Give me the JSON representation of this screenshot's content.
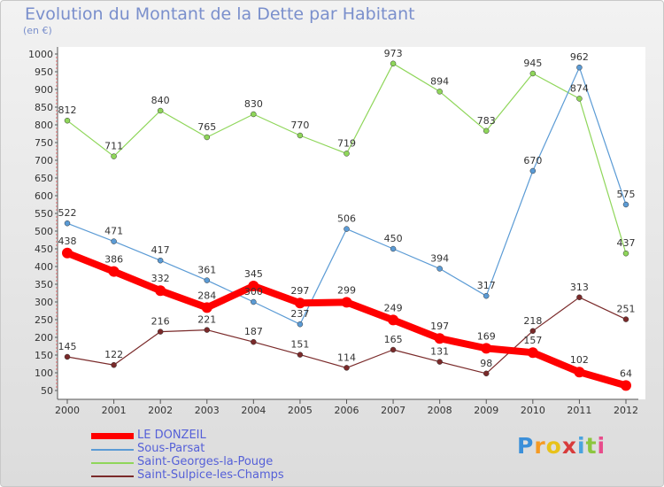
{
  "header": {
    "title": "Evolution du Montant de la Dette par Habitant",
    "subtitle": "(en €)"
  },
  "chart_data": {
    "type": "line",
    "title": "Evolution du Montant de la Dette par Habitant",
    "subtitle": "(en €)",
    "xlabel": "",
    "ylabel": "",
    "x": [
      "2000",
      "2001",
      "2002",
      "2003",
      "2004",
      "2005",
      "2006",
      "2007",
      "2008",
      "2009",
      "2010",
      "2011",
      "2012"
    ],
    "ylim": [
      50,
      1000
    ],
    "yticks": [
      50,
      100,
      150,
      200,
      250,
      300,
      350,
      400,
      450,
      500,
      550,
      600,
      650,
      700,
      750,
      800,
      850,
      900,
      950,
      1000
    ],
    "grid": false,
    "legend": "bottom-left",
    "series": [
      {
        "name": "LE DONZEIL",
        "color": "#ff0000",
        "values": [
          438,
          386,
          332,
          284,
          345,
          297,
          299,
          249,
          197,
          169,
          157,
          102,
          64
        ]
      },
      {
        "name": "Sous-Parsat",
        "color": "#5b9bd5",
        "values": [
          522,
          471,
          417,
          361,
          300,
          237,
          506,
          450,
          394,
          317,
          670,
          962,
          575
        ]
      },
      {
        "name": "Saint-Georges-la-Pouge",
        "color": "#8fd65a",
        "values": [
          812,
          711,
          840,
          765,
          830,
          770,
          719,
          973,
          894,
          783,
          945,
          874,
          437
        ]
      },
      {
        "name": "Saint-Sulpice-les-Champs",
        "color": "#7a2a2a",
        "values": [
          145,
          122,
          216,
          221,
          187,
          151,
          114,
          165,
          131,
          98,
          218,
          313,
          251
        ]
      }
    ]
  },
  "legend": {
    "items": [
      {
        "label": "LE DONZEIL",
        "color": "#ff0000"
      },
      {
        "label": "Sous-Parsat",
        "color": "#5b9bd5"
      },
      {
        "label": "Saint-Georges-la-Pouge",
        "color": "#8fd65a"
      },
      {
        "label": "Saint-Sulpice-les-Champs",
        "color": "#7a2a2a"
      }
    ]
  },
  "logo": {
    "text": "Proxiti",
    "letter_colors": [
      "#3b8fd9",
      "#f59a23",
      "#e8c21a",
      "#d83b3b",
      "#4aa3df",
      "#8cc63f",
      "#e84c8b"
    ]
  }
}
